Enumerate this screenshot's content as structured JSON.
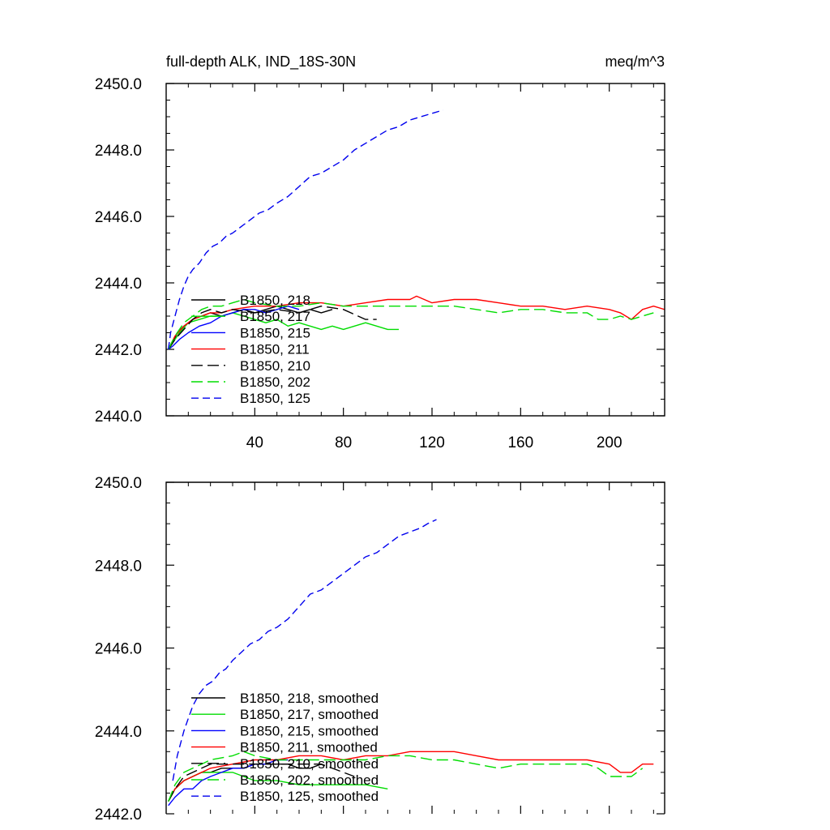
{
  "chart_data": [
    {
      "type": "line",
      "title": "full-depth ALK, IND_18S-30N",
      "units": "meq/m^3",
      "xlim": [
        0,
        225
      ],
      "ylim": [
        2440,
        2450
      ],
      "xticks": [
        40,
        80,
        120,
        160,
        200
      ],
      "yticks": [
        2440,
        2442,
        2444,
        2446,
        2448,
        2450
      ],
      "xtick_labels": [
        "40",
        "80",
        "120",
        "160",
        "200"
      ],
      "ytick_labels": [
        "2440.0",
        "2442.0",
        "2444.0",
        "2446.0",
        "2448.0",
        "2450.0"
      ],
      "legend_position": "lower-left",
      "grid": false,
      "series": [
        {
          "name": "B1850, 218",
          "color": "#000000",
          "dash": "solid",
          "x": [
            1,
            3,
            5,
            8,
            12,
            16,
            20,
            25,
            30,
            35,
            40,
            45,
            50,
            55,
            60,
            65,
            70,
            75
          ],
          "y": [
            2442.0,
            2442.2,
            2442.5,
            2442.7,
            2442.9,
            2443.0,
            2443.1,
            2443.0,
            2443.1,
            2443.2,
            2443.1,
            2443.2,
            2443.3,
            2443.2,
            2443.1,
            2443.2,
            2443.1,
            2443.2
          ]
        },
        {
          "name": "B1850, 217",
          "color": "#00dd00",
          "dash": "solid",
          "x": [
            1,
            3,
            6,
            10,
            15,
            20,
            25,
            30,
            35,
            40,
            45,
            50,
            55,
            60,
            65,
            70,
            75,
            80,
            85,
            90,
            95,
            100,
            105
          ],
          "y": [
            2442.0,
            2442.2,
            2442.5,
            2442.8,
            2442.9,
            2443.0,
            2443.0,
            2443.1,
            2443.0,
            2442.9,
            2442.8,
            2442.9,
            2442.7,
            2442.8,
            2442.7,
            2442.6,
            2442.7,
            2442.6,
            2442.7,
            2442.8,
            2442.7,
            2442.6,
            2442.6
          ]
        },
        {
          "name": "B1850, 215",
          "color": "#0000ff",
          "dash": "solid",
          "x": [
            1,
            3,
            6,
            10,
            15,
            20,
            25,
            30,
            35,
            40,
            45,
            50,
            55,
            60
          ],
          "y": [
            2442.0,
            2442.1,
            2442.3,
            2442.5,
            2442.7,
            2442.8,
            2443.0,
            2443.1,
            2443.2,
            2443.2,
            2443.1,
            2443.2,
            2443.3,
            2443.2
          ]
        },
        {
          "name": "B1850, 211",
          "color": "#ff0000",
          "dash": "solid",
          "x": [
            1,
            4,
            8,
            12,
            16,
            20,
            25,
            30,
            40,
            50,
            60,
            70,
            80,
            90,
            100,
            110,
            113,
            120,
            130,
            140,
            150,
            160,
            170,
            180,
            190,
            200,
            205,
            210,
            215,
            220,
            225
          ],
          "y": [
            2442.0,
            2442.4,
            2442.7,
            2442.9,
            2443.0,
            2443.1,
            2443.1,
            2443.2,
            2443.3,
            2443.3,
            2443.4,
            2443.4,
            2443.3,
            2443.4,
            2443.5,
            2443.5,
            2443.6,
            2443.4,
            2443.5,
            2443.5,
            2443.4,
            2443.3,
            2443.3,
            2443.2,
            2443.3,
            2443.2,
            2443.1,
            2442.9,
            2443.2,
            2443.3,
            2443.2
          ]
        },
        {
          "name": "B1850, 210",
          "color": "#000000",
          "dash": "long",
          "x": [
            1,
            4,
            8,
            12,
            16,
            20,
            25,
            30,
            40,
            50,
            60,
            70,
            80,
            90,
            95
          ],
          "y": [
            2442.0,
            2442.3,
            2442.6,
            2442.9,
            2443.1,
            2443.2,
            2443.1,
            2443.2,
            2443.1,
            2443.2,
            2443.1,
            2443.3,
            2443.2,
            2442.9,
            2442.9
          ]
        },
        {
          "name": "B1850, 202",
          "color": "#00dd00",
          "dash": "long",
          "x": [
            1,
            4,
            8,
            12,
            16,
            20,
            25,
            30,
            35,
            40,
            50,
            60,
            70,
            80,
            90,
            100,
            110,
            120,
            130,
            140,
            150,
            160,
            170,
            180,
            190,
            195,
            200,
            205,
            210,
            215,
            220
          ],
          "y": [
            2442.0,
            2442.4,
            2442.8,
            2443.0,
            2443.2,
            2443.3,
            2443.3,
            2443.4,
            2443.5,
            2443.4,
            2443.3,
            2443.3,
            2443.4,
            2443.3,
            2443.3,
            2443.3,
            2443.3,
            2443.3,
            2443.3,
            2443.2,
            2443.1,
            2443.2,
            2443.2,
            2443.1,
            2443.1,
            2442.9,
            2442.9,
            2443.0,
            2442.9,
            2443.0,
            2443.1
          ]
        },
        {
          "name": "B1850, 125",
          "color": "#0000ee",
          "dash": "short",
          "x": [
            1,
            2,
            4,
            6,
            8,
            10,
            12,
            15,
            18,
            21,
            24,
            27,
            30,
            34,
            38,
            42,
            46,
            50,
            55,
            60,
            65,
            70,
            75,
            80,
            85,
            90,
            95,
            100,
            105,
            110,
            115,
            120,
            125
          ],
          "y": [
            2442.0,
            2442.5,
            2443.0,
            2443.5,
            2443.9,
            2444.2,
            2444.4,
            2444.6,
            2444.9,
            2445.1,
            2445.2,
            2445.4,
            2445.5,
            2445.7,
            2445.9,
            2446.1,
            2446.2,
            2446.4,
            2446.6,
            2446.9,
            2447.2,
            2447.3,
            2447.5,
            2447.7,
            2448.0,
            2448.2,
            2448.4,
            2448.6,
            2448.7,
            2448.9,
            2449.0,
            2449.1,
            2449.2
          ]
        }
      ]
    },
    {
      "type": "line",
      "title": "",
      "xlim": [
        0,
        225
      ],
      "ylim": [
        2442,
        2450
      ],
      "xticks": [
        40,
        80,
        120,
        160,
        200
      ],
      "yticks": [
        2442,
        2444,
        2446,
        2448,
        2450
      ],
      "ytick_labels": [
        "2442.0",
        "2444.0",
        "2446.0",
        "2448.0",
        "2450.0"
      ],
      "legend_position": "lower-left",
      "grid": false,
      "series": [
        {
          "name": "B1850, 218, smoothed",
          "color": "#000000",
          "dash": "solid",
          "x": [
            1,
            4,
            8,
            12,
            16,
            20,
            25,
            30,
            35,
            40,
            45,
            50,
            55,
            60,
            65,
            70
          ],
          "y": [
            2442.3,
            2442.6,
            2442.8,
            2442.9,
            2443.0,
            2443.0,
            2443.1,
            2443.1,
            2443.1,
            2443.2,
            2443.2,
            2443.2,
            2443.2,
            2443.1,
            2443.1,
            2443.2
          ]
        },
        {
          "name": "B1850, 217, smoothed",
          "color": "#00dd00",
          "dash": "solid",
          "x": [
            1,
            4,
            8,
            12,
            16,
            20,
            25,
            30,
            40,
            50,
            60,
            70,
            80,
            90,
            100
          ],
          "y": [
            2442.3,
            2442.6,
            2442.8,
            2442.9,
            2443.0,
            2443.0,
            2443.0,
            2443.0,
            2442.8,
            2442.8,
            2442.7,
            2442.7,
            2442.7,
            2442.7,
            2442.6
          ]
        },
        {
          "name": "B1850, 215, smoothed",
          "color": "#0000ff",
          "dash": "solid",
          "x": [
            1,
            4,
            8,
            12,
            16,
            20,
            25,
            30,
            35,
            40,
            45,
            50,
            55
          ],
          "y": [
            2442.2,
            2442.4,
            2442.6,
            2442.6,
            2442.8,
            2442.9,
            2443.0,
            2443.1,
            2443.1,
            2443.2,
            2443.2,
            2443.3,
            2443.3
          ]
        },
        {
          "name": "B1850, 211, smoothed",
          "color": "#ff0000",
          "dash": "solid",
          "x": [
            1,
            4,
            8,
            12,
            16,
            20,
            30,
            40,
            50,
            60,
            70,
            80,
            90,
            100,
            110,
            120,
            130,
            140,
            150,
            160,
            170,
            180,
            190,
            200,
            205,
            210,
            215,
            220
          ],
          "y": [
            2442.3,
            2442.6,
            2442.8,
            2442.9,
            2443.0,
            2443.1,
            2443.2,
            2443.3,
            2443.3,
            2443.4,
            2443.4,
            2443.3,
            2443.4,
            2443.4,
            2443.5,
            2443.5,
            2443.5,
            2443.4,
            2443.3,
            2443.3,
            2443.3,
            2443.3,
            2443.3,
            2443.2,
            2443.0,
            2443.0,
            2443.2,
            2443.2
          ]
        },
        {
          "name": "B1850, 210, smoothed",
          "color": "#000000",
          "dash": "long",
          "x": [
            1,
            4,
            8,
            12,
            16,
            20,
            30,
            40,
            50,
            60,
            70,
            80,
            85
          ],
          "y": [
            2442.3,
            2442.6,
            2442.9,
            2443.0,
            2443.1,
            2443.2,
            2443.2,
            2443.2,
            2443.2,
            2443.2,
            2443.2,
            2443.0,
            2442.9
          ]
        },
        {
          "name": "B1850, 202, smoothed",
          "color": "#00dd00",
          "dash": "long",
          "x": [
            1,
            4,
            8,
            12,
            16,
            20,
            30,
            35,
            40,
            50,
            60,
            70,
            80,
            90,
            100,
            110,
            120,
            130,
            140,
            150,
            160,
            170,
            180,
            190,
            195,
            200,
            205,
            210,
            215
          ],
          "y": [
            2442.3,
            2442.7,
            2443.0,
            2443.1,
            2443.2,
            2443.3,
            2443.4,
            2443.5,
            2443.4,
            2443.3,
            2443.3,
            2443.3,
            2443.3,
            2443.3,
            2443.4,
            2443.4,
            2443.3,
            2443.3,
            2443.2,
            2443.1,
            2443.2,
            2443.2,
            2443.2,
            2443.2,
            2443.1,
            2442.9,
            2442.9,
            2442.9,
            2443.1
          ]
        },
        {
          "name": "B1850, 125, smoothed",
          "color": "#0000ee",
          "dash": "short",
          "x": [
            3,
            5,
            8,
            10,
            12,
            15,
            18,
            21,
            24,
            27,
            30,
            34,
            38,
            42,
            46,
            50,
            55,
            60,
            65,
            70,
            75,
            80,
            85,
            90,
            95,
            100,
            105,
            110,
            115,
            118,
            122
          ],
          "y": [
            2442.8,
            2443.4,
            2444.0,
            2444.3,
            2444.6,
            2444.9,
            2445.1,
            2445.2,
            2445.4,
            2445.5,
            2445.7,
            2445.9,
            2446.1,
            2446.2,
            2446.4,
            2446.5,
            2446.7,
            2447.0,
            2447.3,
            2447.4,
            2447.6,
            2447.8,
            2448.0,
            2448.2,
            2448.3,
            2448.5,
            2448.7,
            2448.8,
            2448.9,
            2449.0,
            2449.1
          ]
        }
      ]
    }
  ]
}
